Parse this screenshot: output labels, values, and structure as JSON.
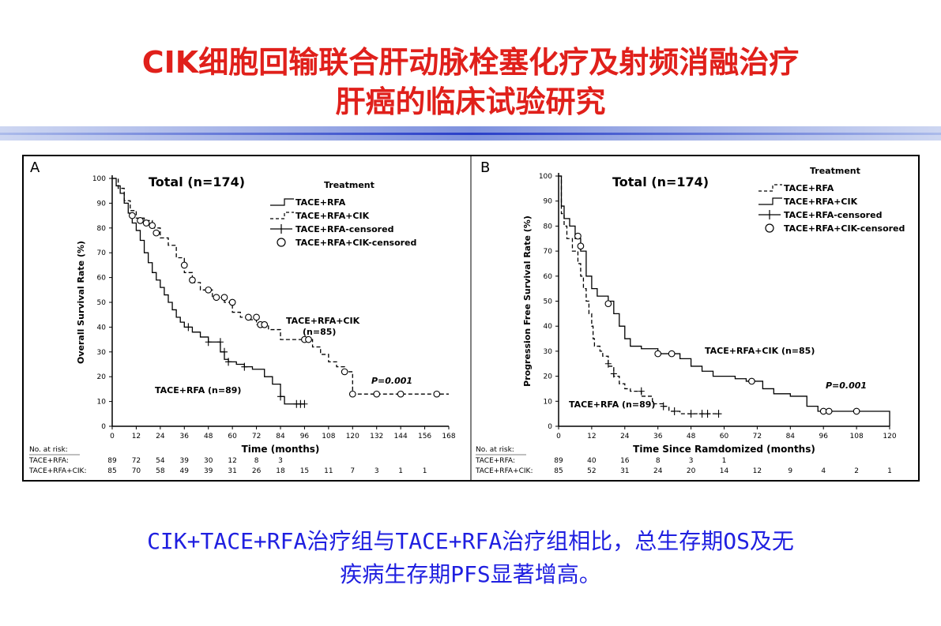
{
  "slide": {
    "title_line1": "CIK细胞回输联合肝动脉栓塞化疗及射频消融治疗",
    "title_line2": "肝癌的临床试验研究",
    "conclusion_line1": "CIK+TACE+RFA治疗组与TACE+RFA治疗组相比，总生存期OS及无",
    "conclusion_line2": "疾病生存期PFS显著增高。",
    "title_color": "#e0201b",
    "conclusion_color": "#1f1fe0"
  },
  "chart_data": [
    {
      "type": "line",
      "panel_label": "A",
      "title": "Total (n=174)",
      "xlabel": "Time (months)",
      "ylabel": "Overall Survival Rate (%)",
      "xlim": [
        0,
        168
      ],
      "ylim": [
        0,
        100
      ],
      "x_ticks": [
        "0",
        "12",
        "24",
        "36",
        "48",
        "60",
        "72",
        "84",
        "96",
        "108",
        "120",
        "132",
        "144",
        "156",
        "168"
      ],
      "y_ticks": [
        "0",
        "10",
        "20",
        "30",
        "40",
        "50",
        "60",
        "70",
        "80",
        "90",
        "100"
      ],
      "legend_title": "Treatment",
      "legend": [
        "TACE+RFA",
        "TACE+RFA+CIK",
        "TACE+RFA-censored",
        "TACE+RFA+CIK-censored"
      ],
      "annotations": {
        "cik_label_line1": "TACE+RFA+CIK",
        "cik_label_line2": "(n=85)",
        "rfa_label": "TACE+RFA (n=89)",
        "p_value": "P=0.001"
      },
      "series": [
        {
          "name": "TACE+RFA",
          "style": "solid",
          "points": [
            [
              0,
              100
            ],
            [
              2,
              97
            ],
            [
              4,
              94
            ],
            [
              6,
              90
            ],
            [
              8,
              86
            ],
            [
              10,
              82
            ],
            [
              12,
              79
            ],
            [
              14,
              75
            ],
            [
              16,
              70
            ],
            [
              18,
              66
            ],
            [
              20,
              62
            ],
            [
              22,
              59
            ],
            [
              24,
              56
            ],
            [
              26,
              53
            ],
            [
              28,
              50
            ],
            [
              30,
              47
            ],
            [
              32,
              44
            ],
            [
              34,
              42
            ],
            [
              36,
              40
            ],
            [
              40,
              38
            ],
            [
              44,
              36
            ],
            [
              48,
              34
            ],
            [
              52,
              34
            ],
            [
              54,
              30
            ],
            [
              56,
              27
            ],
            [
              58,
              26
            ],
            [
              62,
              25
            ],
            [
              66,
              24
            ],
            [
              70,
              23
            ],
            [
              76,
              20
            ],
            [
              80,
              17
            ],
            [
              84,
              12
            ],
            [
              86,
              9
            ],
            [
              96,
              9
            ]
          ],
          "censored": [
            [
              38,
              40
            ],
            [
              48,
              34
            ],
            [
              54,
              34
            ],
            [
              56,
              30
            ],
            [
              58,
              26
            ],
            [
              66,
              24
            ],
            [
              84,
              12
            ],
            [
              92,
              9
            ],
            [
              94,
              9
            ],
            [
              96,
              9
            ]
          ]
        },
        {
          "name": "TACE+RFA+CIK",
          "style": "dashed",
          "points": [
            [
              0,
              100
            ],
            [
              3,
              96
            ],
            [
              6,
              91
            ],
            [
              9,
              87
            ],
            [
              12,
              84
            ],
            [
              16,
              83
            ],
            [
              20,
              80
            ],
            [
              24,
              76
            ],
            [
              28,
              73
            ],
            [
              32,
              68
            ],
            [
              36,
              62
            ],
            [
              40,
              58
            ],
            [
              44,
              55
            ],
            [
              50,
              52
            ],
            [
              56,
              50
            ],
            [
              60,
              46
            ],
            [
              64,
              44
            ],
            [
              68,
              43
            ],
            [
              72,
              41
            ],
            [
              78,
              39
            ],
            [
              84,
              35
            ],
            [
              96,
              35
            ],
            [
              100,
              32
            ],
            [
              104,
              29
            ],
            [
              108,
              26
            ],
            [
              112,
              24
            ],
            [
              116,
              22
            ],
            [
              120,
              13
            ],
            [
              168,
              13
            ]
          ],
          "censored": [
            [
              10,
              85
            ],
            [
              14,
              83
            ],
            [
              17,
              82
            ],
            [
              20,
              81
            ],
            [
              22,
              78
            ],
            [
              36,
              65
            ],
            [
              40,
              59
            ],
            [
              48,
              55
            ],
            [
              52,
              52
            ],
            [
              56,
              52
            ],
            [
              60,
              50
            ],
            [
              68,
              44
            ],
            [
              72,
              44
            ],
            [
              74,
              41
            ],
            [
              76,
              41
            ],
            [
              96,
              35
            ],
            [
              98,
              35
            ],
            [
              116,
              22
            ],
            [
              120,
              13
            ],
            [
              132,
              13
            ],
            [
              144,
              13
            ],
            [
              162,
              13
            ]
          ]
        }
      ],
      "risk_table": {
        "header": "No. at risk:",
        "rows": [
          {
            "label": "TACE+RFA:",
            "values": [
              "89",
              "72",
              "54",
              "39",
              "30",
              "12",
              "8",
              "3"
            ]
          },
          {
            "label": "TACE+RFA+CIK:",
            "values": [
              "85",
              "70",
              "58",
              "49",
              "39",
              "31",
              "26",
              "18",
              "15",
              "11",
              "7",
              "3",
              "1",
              "1"
            ]
          }
        ]
      }
    },
    {
      "type": "line",
      "panel_label": "B",
      "title": "Total (n=174)",
      "xlabel": "Time Since Ramdomized (months)",
      "ylabel": "Progression Free Survival Rate (%)",
      "xlim": [
        0,
        120
      ],
      "ylim": [
        0,
        100
      ],
      "x_ticks": [
        "0",
        "12",
        "24",
        "36",
        "48",
        "60",
        "72",
        "84",
        "96",
        "108",
        "120"
      ],
      "y_ticks": [
        "0",
        "10",
        "20",
        "30",
        "40",
        "50",
        "60",
        "70",
        "80",
        "90",
        "100"
      ],
      "legend_title": "Treatment",
      "legend": [
        "TACE+RFA",
        "TACE+RFA+CIK",
        "TACE+RFA-censored",
        "TACE+RFA+CIK-censored"
      ],
      "annotations": {
        "cik_label": "TACE+RFA+CIK (n=85)",
        "rfa_label": "TACE+RFA (n=89)",
        "p_value": "P=0.001"
      },
      "series": [
        {
          "name": "TACE+RFA",
          "style": "dashed",
          "points": [
            [
              0,
              100
            ],
            [
              1,
              85
            ],
            [
              2,
              80
            ],
            [
              3,
              75
            ],
            [
              5,
              70
            ],
            [
              7,
              65
            ],
            [
              8,
              60
            ],
            [
              9,
              55
            ],
            [
              10,
              50
            ],
            [
              11,
              45
            ],
            [
              12,
              40
            ],
            [
              12.5,
              35
            ],
            [
              13,
              32
            ],
            [
              15,
              30
            ],
            [
              16,
              28
            ],
            [
              18,
              24
            ],
            [
              20,
              20
            ],
            [
              22,
              17
            ],
            [
              24,
              15
            ],
            [
              26,
              14
            ],
            [
              30,
              12
            ],
            [
              34,
              9
            ],
            [
              38,
              8
            ],
            [
              40,
              6
            ],
            [
              44,
              5
            ],
            [
              58,
              5
            ]
          ],
          "censored": [
            [
              18,
              25
            ],
            [
              20,
              21
            ],
            [
              30,
              14
            ],
            [
              38,
              8
            ],
            [
              42,
              6
            ],
            [
              48,
              5
            ],
            [
              52,
              5
            ],
            [
              54,
              5
            ],
            [
              58,
              5
            ]
          ]
        },
        {
          "name": "TACE+RFA+CIK",
          "style": "solid",
          "points": [
            [
              0,
              100
            ],
            [
              1,
              88
            ],
            [
              2,
              83
            ],
            [
              4,
              80
            ],
            [
              6,
              75
            ],
            [
              8,
              70
            ],
            [
              10,
              60
            ],
            [
              12,
              55
            ],
            [
              14,
              52
            ],
            [
              18,
              50
            ],
            [
              20,
              45
            ],
            [
              22,
              40
            ],
            [
              24,
              35
            ],
            [
              26,
              32
            ],
            [
              30,
              31
            ],
            [
              36,
              29
            ],
            [
              42,
              29
            ],
            [
              44,
              27
            ],
            [
              48,
              24
            ],
            [
              52,
              22
            ],
            [
              56,
              20
            ],
            [
              64,
              19
            ],
            [
              68,
              18
            ],
            [
              74,
              15
            ],
            [
              78,
              13
            ],
            [
              84,
              12
            ],
            [
              90,
              8
            ],
            [
              94,
              6
            ],
            [
              108,
              6
            ],
            [
              120,
              6
            ],
            [
              120,
              0
            ]
          ],
          "censored": [
            [
              7,
              76
            ],
            [
              8,
              72
            ],
            [
              18,
              49
            ],
            [
              36,
              29
            ],
            [
              41,
              29
            ],
            [
              70,
              18
            ],
            [
              96,
              6
            ],
            [
              98,
              6
            ],
            [
              108,
              6
            ]
          ]
        }
      ],
      "risk_table": {
        "header": "No. at risk:",
        "rows": [
          {
            "label": "TACE+RFA:",
            "values": [
              "89",
              "40",
              "16",
              "8",
              "3",
              "1"
            ]
          },
          {
            "label": "TACE+RFA+CIK:",
            "values": [
              "85",
              "52",
              "31",
              "24",
              "20",
              "14",
              "12",
              "9",
              "4",
              "2",
              "1"
            ]
          }
        ]
      }
    }
  ]
}
